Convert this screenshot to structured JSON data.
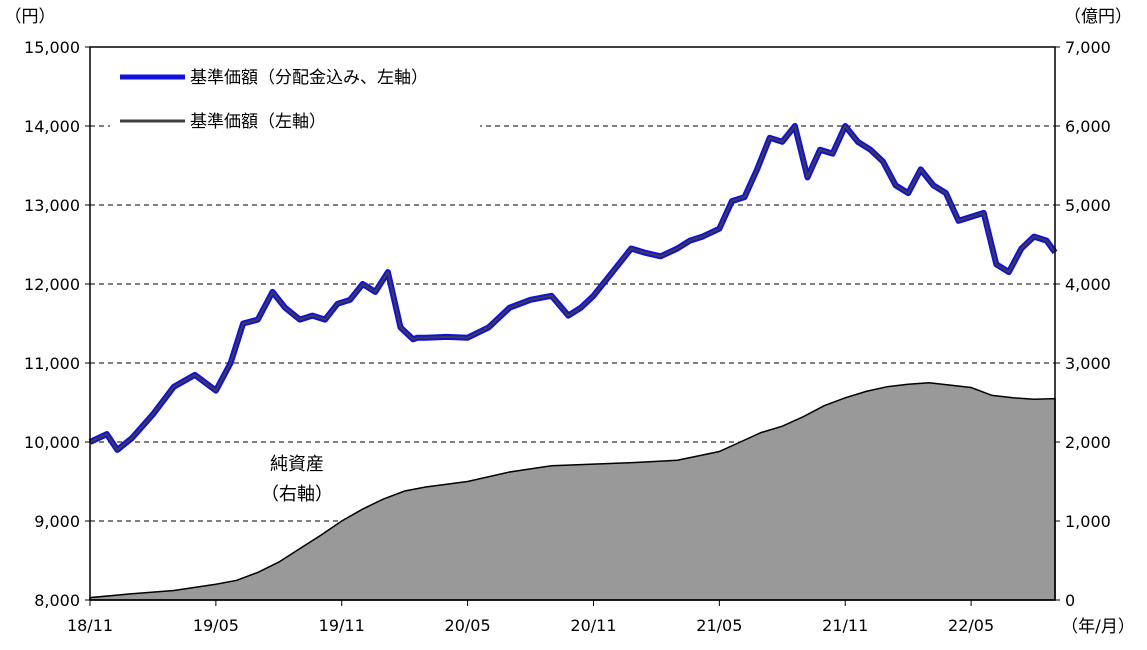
{
  "chart_data": {
    "type": "line",
    "left_axis_unit": "（円）",
    "right_axis_unit": "（億円）",
    "x_axis_unit": "（年/月）",
    "x_ticks": [
      "18/11",
      "19/05",
      "19/11",
      "20/05",
      "20/11",
      "21/05",
      "21/11",
      "22/05"
    ],
    "x_months": [
      0,
      6,
      12,
      18,
      24,
      30,
      36,
      42
    ],
    "x_range_months": [
      0,
      46
    ],
    "left_ticks": [
      "8,000",
      "9,000",
      "10,000",
      "11,000",
      "12,000",
      "13,000",
      "14,000",
      "15,000"
    ],
    "left_tick_values": [
      8000,
      9000,
      10000,
      11000,
      12000,
      13000,
      14000,
      15000
    ],
    "right_ticks": [
      "0",
      "1,000",
      "2,000",
      "3,000",
      "4,000",
      "5,000",
      "6,000",
      "7,000"
    ],
    "right_tick_values": [
      0,
      1000,
      2000,
      3000,
      4000,
      5000,
      6000,
      7000
    ],
    "ylim_left": [
      8000,
      15000
    ],
    "ylim_right": [
      0,
      7000
    ],
    "gridlines_dashed": true,
    "legend": {
      "placement": "top-left",
      "entries": [
        "基準価額（分配金込み、左軸）",
        "基準価額（左軸）"
      ]
    },
    "annotation": {
      "line1": "純資産",
      "line2": "（右軸）"
    },
    "series_nav": {
      "name": "基準価額（分配金込み、左軸）",
      "color": "#1010e0",
      "months": [
        0,
        0.8,
        1.3,
        2,
        3,
        4,
        5,
        6,
        6.7,
        7.3,
        8,
        8.7,
        9.3,
        10,
        10.6,
        11.2,
        11.8,
        12.4,
        13,
        13.6,
        14.2,
        14.8,
        15.4,
        15.6,
        16,
        17,
        18,
        19,
        20,
        21,
        22,
        22.8,
        23.4,
        24,
        24.6,
        25.2,
        25.8,
        26.4,
        27.2,
        28,
        28.6,
        29.2,
        30,
        30.6,
        31.2,
        31.8,
        32.4,
        33,
        33.6,
        34.2,
        34.8,
        35.4,
        36,
        36.6,
        37.2,
        37.8,
        38.4,
        39,
        39.6,
        40.2,
        40.8,
        41.4,
        42,
        42.6,
        43.2,
        43.8,
        44.4,
        45,
        45.6,
        46
      ],
      "values": [
        10000,
        10100,
        9900,
        10050,
        10350,
        10700,
        10850,
        10650,
        11000,
        11500,
        11550,
        11900,
        11700,
        11550,
        11600,
        11550,
        11750,
        11800,
        12000,
        11900,
        12150,
        11450,
        11300,
        11320,
        11320,
        11330,
        11320,
        11450,
        11700,
        11800,
        11850,
        11600,
        11700,
        11850,
        12050,
        12250,
        12450,
        12400,
        12350,
        12450,
        12550,
        12600,
        12700,
        13050,
        13100,
        13450,
        13850,
        13800,
        14000,
        13350,
        13700,
        13650,
        14000,
        13800,
        13700,
        13550,
        13250,
        13150,
        13450,
        13250,
        13150,
        12800,
        12850,
        12900,
        12250,
        12150,
        12450,
        12600,
        12550,
        12400
      ]
    },
    "series_nav_plain": {
      "name": "基準価額（左軸）",
      "color": "#404040"
    },
    "series_net_assets": {
      "name": "純資産",
      "color": "#999999",
      "months": [
        0,
        2,
        4,
        6,
        7,
        8,
        9,
        10,
        11,
        12,
        13,
        14,
        15,
        16,
        18,
        20,
        22,
        24,
        26,
        28,
        30,
        31,
        32,
        33,
        34,
        35,
        36,
        37,
        38,
        39,
        40,
        41,
        42,
        43,
        44,
        45,
        46
      ],
      "values": [
        30,
        80,
        120,
        200,
        250,
        350,
        480,
        650,
        820,
        1000,
        1150,
        1280,
        1380,
        1430,
        1500,
        1620,
        1700,
        1720,
        1740,
        1770,
        1880,
        2000,
        2120,
        2200,
        2320,
        2460,
        2560,
        2640,
        2700,
        2730,
        2750,
        2720,
        2690,
        2590,
        2560,
        2540,
        2550
      ]
    }
  }
}
